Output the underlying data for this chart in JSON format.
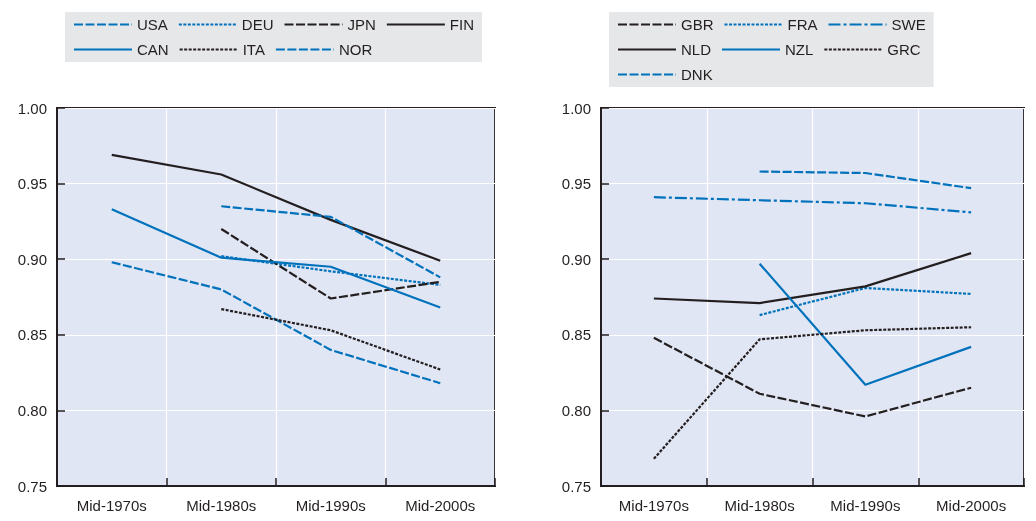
{
  "chart_data": [
    {
      "type": "line",
      "categories": [
        "Mid-1970s",
        "Mid-1980s",
        "Mid-1990s",
        "Mid-2000s"
      ],
      "ylim": [
        0.75,
        1.0
      ],
      "yticks": [
        {
          "value": 0.75,
          "label": "0.75"
        },
        {
          "value": 0.8,
          "label": "0.80"
        },
        {
          "value": 0.85,
          "label": "0.85"
        },
        {
          "value": 0.9,
          "label": "0.90"
        },
        {
          "value": 0.95,
          "label": "0.95"
        },
        {
          "value": 1.0,
          "label": "1.00"
        }
      ],
      "grid": true,
      "legend": "top",
      "marker": "none",
      "series": [
        {
          "name": "USA",
          "color": "#0072bc",
          "line_style": "dashed",
          "values": [
            0.898,
            0.88,
            0.84,
            0.818
          ]
        },
        {
          "name": "DEU",
          "color": "#0072bc",
          "line_style": "dotted",
          "values": [
            null,
            0.902,
            0.892,
            0.883
          ]
        },
        {
          "name": "JPN",
          "color": "#231f20",
          "line_style": "dashed",
          "values": [
            null,
            0.92,
            0.874,
            0.885
          ]
        },
        {
          "name": "FIN",
          "color": "#231f20",
          "line_style": "solid",
          "values": [
            0.969,
            0.956,
            0.926,
            0.899
          ]
        },
        {
          "name": "CAN",
          "color": "#0072bc",
          "line_style": "solid",
          "values": [
            0.933,
            0.901,
            0.895,
            0.868
          ]
        },
        {
          "name": "ITA",
          "color": "#231f20",
          "line_style": "dotted",
          "values": [
            null,
            0.867,
            0.853,
            0.827
          ]
        },
        {
          "name": "NOR",
          "color": "#0072bc",
          "line_style": "dashed",
          "values": [
            null,
            0.935,
            0.928,
            0.888
          ]
        }
      ]
    },
    {
      "type": "line",
      "categories": [
        "Mid-1970s",
        "Mid-1980s",
        "Mid-1990s",
        "Mid-2000s"
      ],
      "ylim": [
        0.75,
        1.0
      ],
      "yticks": [
        {
          "value": 0.75,
          "label": "0.75"
        },
        {
          "value": 0.8,
          "label": "0.80"
        },
        {
          "value": 0.85,
          "label": "0.85"
        },
        {
          "value": 0.9,
          "label": "0.90"
        },
        {
          "value": 0.95,
          "label": "0.95"
        },
        {
          "value": 1.0,
          "label": "1.00"
        }
      ],
      "grid": true,
      "legend": "top",
      "marker": "none",
      "series": [
        {
          "name": "GBR",
          "color": "#231f20",
          "line_style": "dashed",
          "values": [
            0.848,
            0.811,
            0.796,
            0.815
          ]
        },
        {
          "name": "FRA",
          "color": "#0072bc",
          "line_style": "dotted",
          "values": [
            null,
            0.863,
            0.881,
            0.877
          ]
        },
        {
          "name": "SWE",
          "color": "#0072bc",
          "line_style": "dashdot",
          "values": [
            0.941,
            0.939,
            0.937,
            0.931
          ]
        },
        {
          "name": "NLD",
          "color": "#231f20",
          "line_style": "solid",
          "values": [
            0.874,
            0.871,
            0.882,
            0.904
          ]
        },
        {
          "name": "NZL",
          "color": "#0072bc",
          "line_style": "solid",
          "values": [
            null,
            0.897,
            0.817,
            0.842
          ]
        },
        {
          "name": "GRC",
          "color": "#231f20",
          "line_style": "dotted",
          "values": [
            0.768,
            0.847,
            0.853,
            0.855
          ]
        },
        {
          "name": "DNK",
          "color": "#0072bc",
          "line_style": "dashed",
          "values": [
            null,
            0.958,
            0.957,
            0.947
          ]
        }
      ]
    }
  ]
}
